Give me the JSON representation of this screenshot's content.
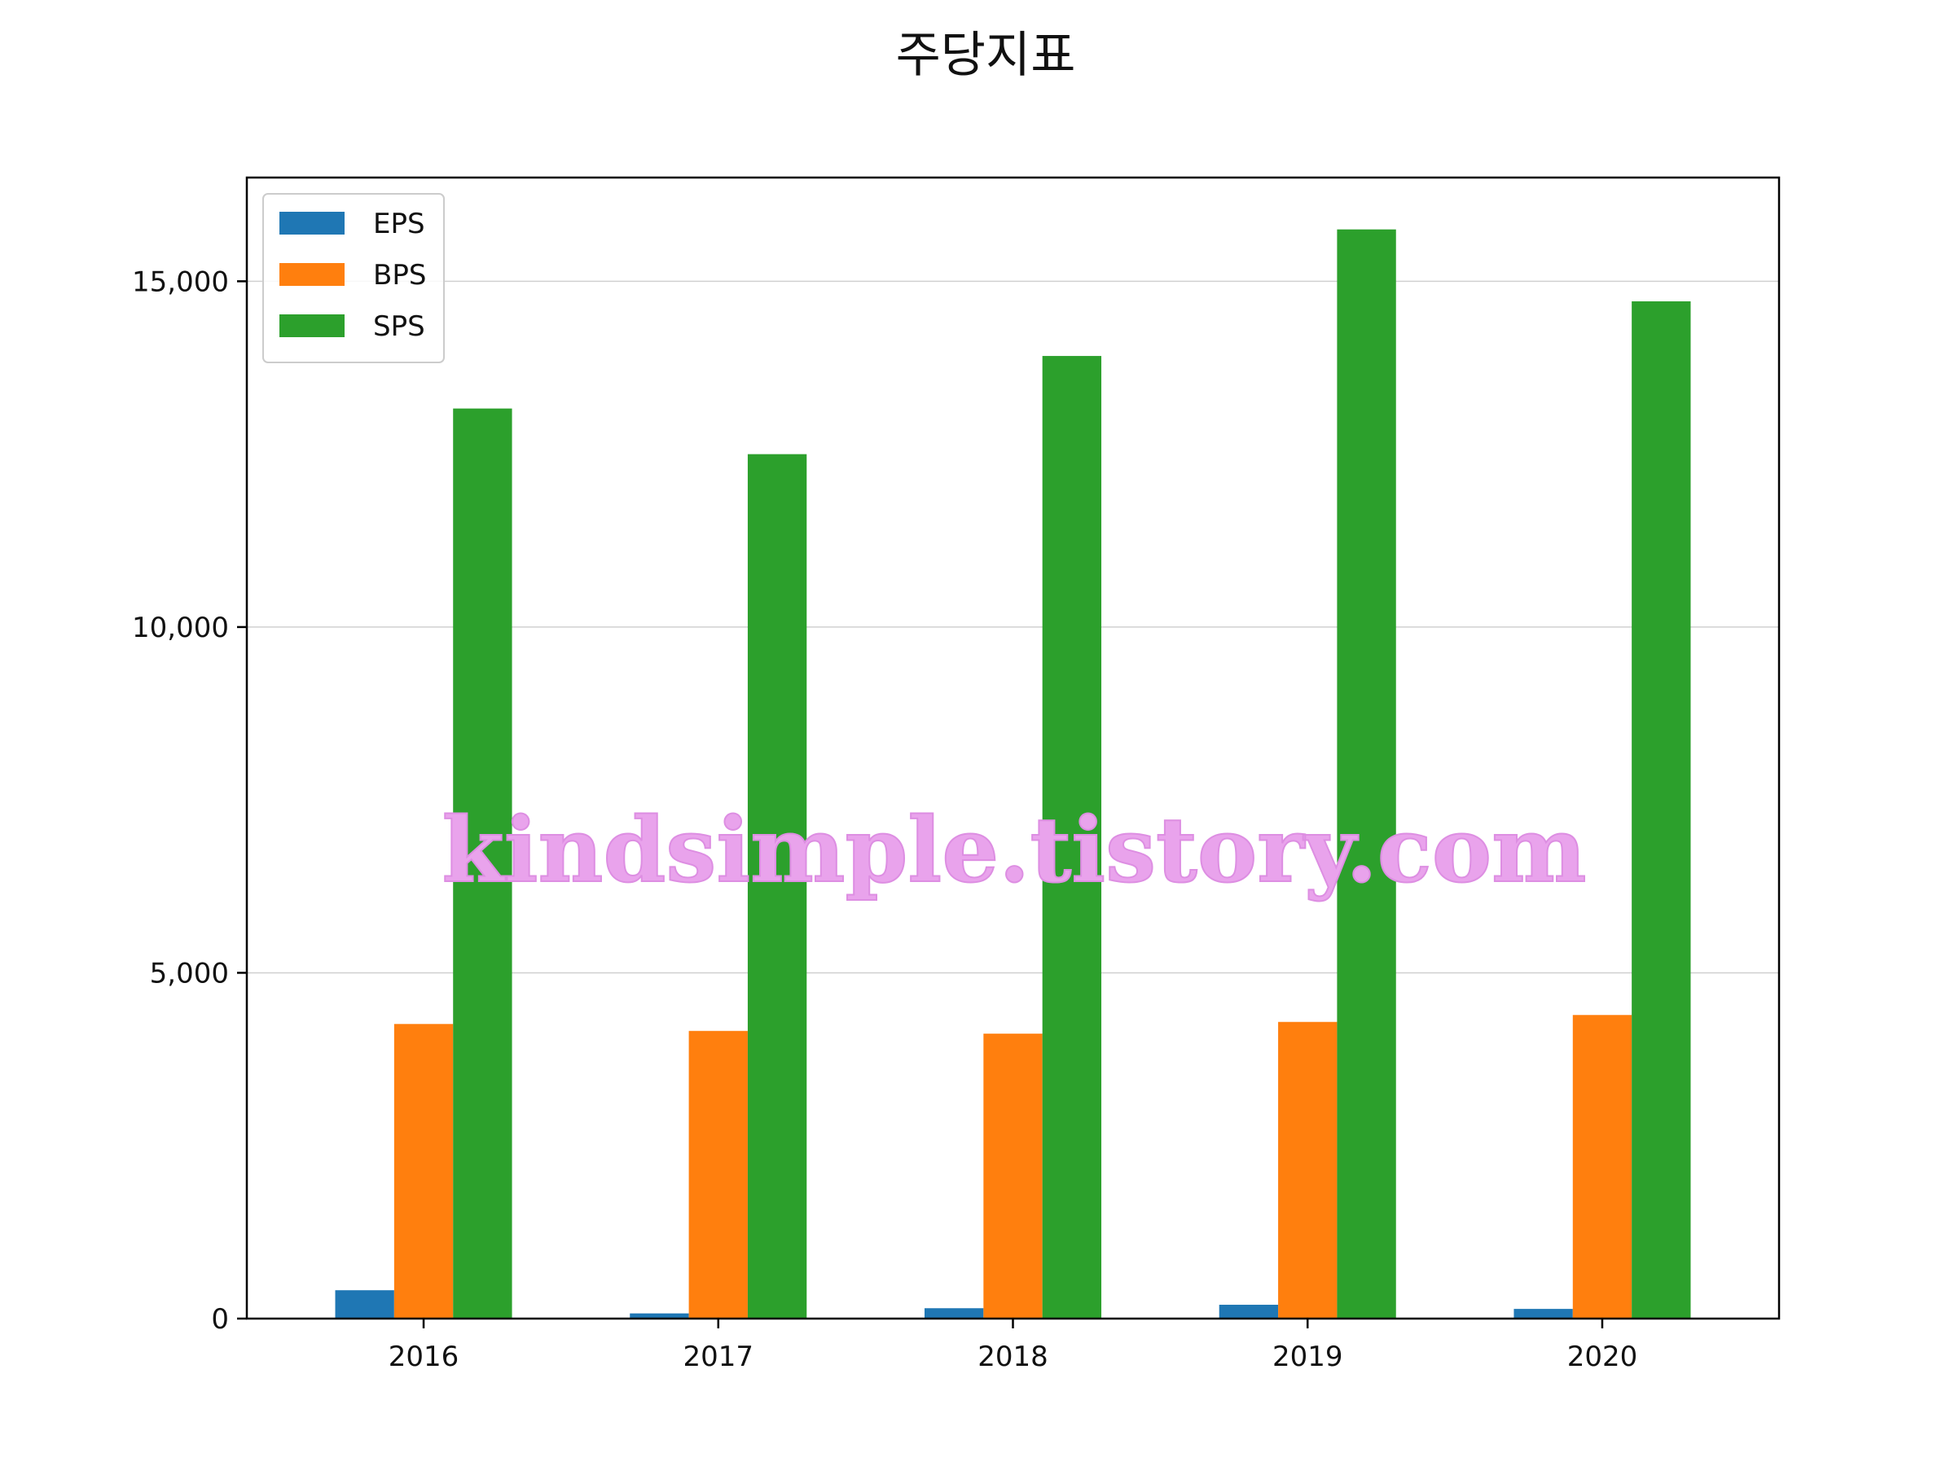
{
  "chart_data": {
    "type": "bar",
    "title": "주당지표",
    "xlabel": "",
    "ylabel": "",
    "categories": [
      "2016",
      "2017",
      "2018",
      "2019",
      "2020"
    ],
    "series": [
      {
        "name": "EPS",
        "color": "#1f77b4",
        "values": [
          410,
          75,
          150,
          200,
          140
        ]
      },
      {
        "name": "BPS",
        "color": "#ff7f0e",
        "values": [
          4260,
          4160,
          4120,
          4290,
          4390
        ]
      },
      {
        "name": "SPS",
        "color": "#2ca02c",
        "values": [
          13160,
          12500,
          13920,
          15750,
          14710
        ]
      }
    ],
    "ylim": [
      0,
      16500
    ],
    "yticks": [
      0,
      5000,
      10000,
      15000
    ],
    "ytick_labels": [
      "0",
      "5,000",
      "10,000",
      "15,000"
    ],
    "grid": "horizontal",
    "legend_position": "top-left",
    "watermark": "kindsimple.tistory.com"
  }
}
